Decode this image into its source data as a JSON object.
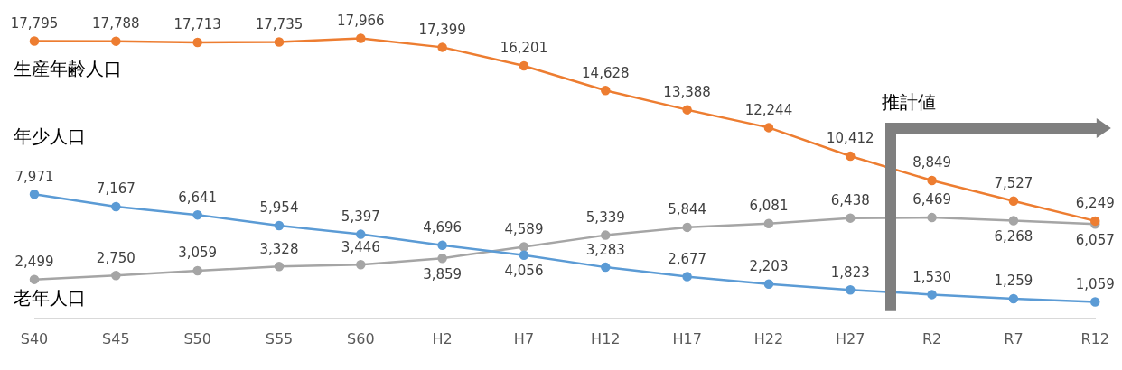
{
  "chart_data": {
    "type": "line",
    "categories": [
      "S40",
      "S45",
      "S50",
      "S55",
      "S60",
      "H2",
      "H7",
      "H12",
      "H17",
      "H22",
      "H27",
      "R2",
      "R7",
      "R12"
    ],
    "series": [
      {
        "name": "生産年齢人口",
        "color": "#ed7d31",
        "values": [
          17795,
          17788,
          17713,
          17735,
          17966,
          17399,
          16201,
          14628,
          13388,
          12244,
          10412,
          8849,
          7527,
          6249
        ],
        "value_labels": [
          "17,795",
          "17,788",
          "17,713",
          "17,735",
          "17,966",
          "17,399",
          "16,201",
          "14,628",
          "13,388",
          "12,244",
          "10,412",
          "8,849",
          "7,527",
          "6,249"
        ]
      },
      {
        "name": "年少人口",
        "color": "#5b9bd5",
        "values": [
          7971,
          7167,
          6641,
          5954,
          5397,
          4696,
          4056,
          3283,
          2677,
          2203,
          1823,
          1530,
          1259,
          1059
        ],
        "value_labels": [
          "7,971",
          "7,167",
          "6,641",
          "5,954",
          "5,397",
          "4,696",
          "4,056",
          "3,283",
          "2,677",
          "2,203",
          "1,823",
          "1,530",
          "1,259",
          "1,059"
        ]
      },
      {
        "name": "老年人口",
        "color": "#a5a5a5",
        "values": [
          2499,
          2750,
          3059,
          3328,
          3446,
          3859,
          4589,
          5339,
          5844,
          6081,
          6438,
          6469,
          6268,
          6057
        ],
        "value_labels": [
          "2,499",
          "2,750",
          "3,059",
          "3,328",
          "3,446",
          "3,859",
          "4,589",
          "5,339",
          "5,844",
          "6,081",
          "6,438",
          "6,469",
          "6,268",
          "6,057"
        ]
      }
    ],
    "marker": "circle",
    "line_style": "solid",
    "legend": false,
    "grid": false,
    "tick_labels": "x",
    "annotations": [
      "推計値"
    ]
  }
}
